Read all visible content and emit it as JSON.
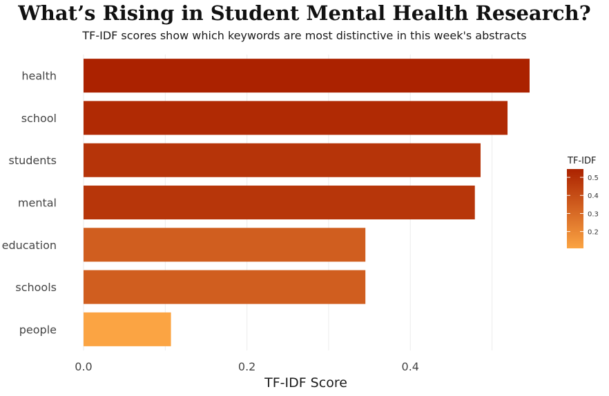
{
  "chart_data": {
    "type": "bar",
    "orientation": "horizontal",
    "title": "What’s Rising in Student Mental Health Research?",
    "subtitle": "TF-IDF scores show which keywords are most distinctive in this week's abstracts",
    "xlabel": "TF-IDF Score",
    "ylabel": "",
    "categories": [
      "health",
      "school",
      "students",
      "mental",
      "education",
      "schools",
      "people"
    ],
    "values": [
      0.546,
      0.519,
      0.486,
      0.479,
      0.345,
      0.345,
      0.107
    ],
    "xlim": [
      0,
      0.546
    ],
    "xticks": [
      0.0,
      0.2,
      0.4
    ],
    "xtick_labels": [
      "0.0",
      "0.2",
      "0.4"
    ],
    "grid": true,
    "color_scale": {
      "low": "#fba443",
      "high": "#ab2200",
      "domain": [
        0.107,
        0.546
      ]
    },
    "legend": {
      "title": "TF-IDF",
      "placement": "right",
      "ticks": [
        0.5,
        0.4,
        0.3,
        0.2
      ],
      "tick_labels": [
        "0.5",
        "0.4",
        "0.3",
        "0.2"
      ]
    }
  }
}
